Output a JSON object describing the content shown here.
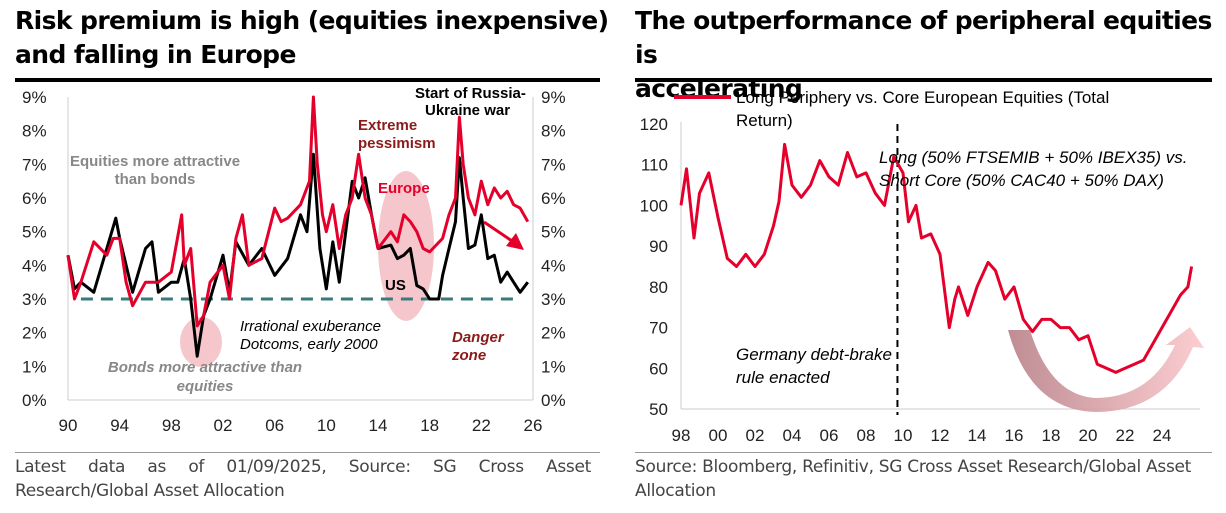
{
  "left": {
    "title_line1": "Risk premium is high (equities inexpensive)",
    "title_line2": "and falling in Europe",
    "footer_line1": "Latest data as of 01/09/2025, Source: SG Cross Asset",
    "footer_line2": "Research/Global Asset Allocation"
  },
  "right": {
    "title_line1": "The outperformance of peripheral equities is",
    "title_line2": "accelerating",
    "footer_line1": "Source: Bloomberg, Refinitiv, SG Cross Asset Research/Global Asset",
    "footer_line2": "Allocation"
  },
  "chart_data": [
    {
      "type": "line",
      "title": "Risk premium is high (equities inexpensive) and falling in Europe",
      "xlim": [
        1990,
        2026
      ],
      "ylim": [
        0,
        9
      ],
      "x_ticks": [
        "90",
        "94",
        "98",
        "02",
        "06",
        "10",
        "14",
        "18",
        "22",
        "26"
      ],
      "y_ticks": [
        "0%",
        "1%",
        "2%",
        "3%",
        "4%",
        "5%",
        "6%",
        "7%",
        "8%",
        "9%"
      ],
      "series": [
        {
          "name": "Europe",
          "color": "#e4002b",
          "x": [
            1990,
            1990.5,
            1991,
            1992,
            1993,
            1993.5,
            1994,
            1994.5,
            1995,
            1996,
            1997,
            1998,
            1998.8,
            1999,
            1999.5,
            2000,
            2000.5,
            2001,
            2002,
            2002.5,
            2003,
            2003.5,
            2004,
            2005,
            2006,
            2006.5,
            2007,
            2008,
            2008.7,
            2009,
            2009.3,
            2009.7,
            2010,
            2010.5,
            2011,
            2011.5,
            2012,
            2012.5,
            2013,
            2013.5,
            2014,
            2015,
            2015.5,
            2016,
            2016.5,
            2017,
            2017.5,
            2018,
            2019,
            2019.5,
            2020,
            2020.3,
            2020.6,
            2021,
            2021.5,
            2022,
            2022.5,
            2023,
            2023.5,
            2024,
            2024.5,
            2025,
            2025.6
          ],
          "y": [
            4.3,
            3.0,
            3.5,
            4.7,
            4.3,
            4.8,
            4.8,
            3.5,
            2.8,
            3.5,
            3.5,
            3.8,
            5.5,
            4.0,
            4.5,
            2.2,
            2.5,
            3.5,
            4.0,
            3.0,
            4.8,
            5.5,
            4.0,
            4.2,
            5.7,
            5.3,
            5.4,
            5.8,
            6.5,
            9.0,
            7.0,
            5.5,
            5.0,
            5.8,
            4.5,
            5.5,
            6.0,
            7.3,
            6.0,
            5.5,
            4.5,
            5.0,
            4.7,
            5.5,
            5.3,
            5.0,
            4.5,
            4.4,
            4.8,
            5.5,
            6.0,
            8.4,
            7.0,
            6.0,
            5.5,
            6.5,
            5.8,
            6.3,
            6.0,
            6.2,
            5.8,
            5.7,
            5.3
          ]
        },
        {
          "name": "US",
          "color": "#000000",
          "x": [
            1990,
            1990.5,
            1991,
            1992,
            1993,
            1993.7,
            1994,
            1995,
            1996,
            1996.5,
            1997,
            1998,
            1998.5,
            1999,
            1999.5,
            2000,
            2000.5,
            2001,
            2002,
            2002.5,
            2003,
            2004,
            2005,
            2006,
            2007,
            2008,
            2008.5,
            2009,
            2009.5,
            2010,
            2010.5,
            2011,
            2012,
            2012.5,
            2013,
            2013.5,
            2014,
            2015,
            2015.5,
            2016,
            2016.5,
            2017,
            2017.5,
            2018,
            2018.7,
            2019,
            2019.5,
            2020,
            2020.3,
            2020.6,
            2021,
            2021.5,
            2022,
            2022.5,
            2023,
            2023.5,
            2024,
            2024.5,
            2025,
            2025.6
          ],
          "y": [
            4.3,
            3.3,
            3.5,
            3.2,
            4.5,
            5.4,
            4.8,
            3.2,
            4.5,
            4.7,
            3.2,
            3.5,
            3.5,
            4.2,
            3.0,
            1.3,
            2.5,
            3.0,
            4.3,
            3.2,
            4.7,
            4.0,
            4.5,
            3.7,
            4.2,
            5.5,
            5.0,
            7.3,
            4.5,
            3.3,
            4.7,
            3.5,
            6.5,
            6.0,
            6.6,
            5.5,
            4.5,
            4.6,
            4.2,
            4.3,
            4.5,
            3.4,
            3.3,
            3.0,
            3.0,
            3.7,
            4.5,
            5.3,
            7.2,
            6.0,
            4.5,
            4.6,
            5.5,
            4.2,
            4.3,
            3.5,
            3.8,
            3.5,
            3.2,
            3.5
          ]
        }
      ],
      "reference_line": {
        "y": 3,
        "x": [
          1991,
          2025
        ],
        "color": "#3a7a7a"
      },
      "annotations": [
        "Start of Russia-",
        "Ukraine war",
        "Extreme",
        "pessimism",
        "Equities more attractive",
        "than bonds",
        "Europe",
        "US",
        "Irrational exuberance",
        "Dotcoms, early 2000",
        "Danger",
        "zone",
        "Bonds more attractive than",
        "equities"
      ]
    },
    {
      "type": "line",
      "title": "The outperformance of peripheral equities is accelerating",
      "xlim": [
        1998,
        2026
      ],
      "ylim": [
        50,
        120
      ],
      "x_ticks": [
        "98",
        "00",
        "02",
        "04",
        "06",
        "08",
        "10",
        "12",
        "14",
        "16",
        "18",
        "20",
        "22",
        "24"
      ],
      "y_ticks": [
        "50",
        "60",
        "70",
        "80",
        "90",
        "100",
        "110",
        "120"
      ],
      "legend": "Long Periphery vs. Core European Equities (Total Return)",
      "legend_line2": "Return)",
      "legend_line1": "Long Periphery vs. Core European Equities (Total",
      "series": [
        {
          "name": "Long Periphery vs. Core European Equities (Total Return)",
          "color": "#e4002b",
          "x": [
            1998,
            1998.3,
            1998.7,
            1999,
            1999.5,
            2000,
            2000.5,
            2001,
            2001.5,
            2002,
            2002.5,
            2003,
            2003.3,
            2003.6,
            2004,
            2004.5,
            2005,
            2005.5,
            2006,
            2006.5,
            2007,
            2007.5,
            2008,
            2008.5,
            2009,
            2009.5,
            2010,
            2010.3,
            2010.7,
            2011,
            2011.5,
            2012,
            2012.5,
            2012.8,
            2013,
            2013.5,
            2014,
            2014.6,
            2015,
            2015.5,
            2016,
            2016.5,
            2017,
            2017.5,
            2018,
            2018.5,
            2019,
            2019.5,
            2020,
            2020.5,
            2021,
            2021.5,
            2022,
            2022.5,
            2023,
            2023.5,
            2024,
            2024.5,
            2025,
            2025.4,
            2025.6
          ],
          "y": [
            100,
            109,
            92,
            103,
            108,
            97,
            87,
            85,
            88,
            85,
            88,
            95,
            101,
            115,
            105,
            102,
            105,
            111,
            107,
            105,
            113,
            107,
            108,
            103,
            100,
            112,
            108,
            96,
            100,
            92,
            93,
            88,
            70,
            77,
            80,
            73,
            80,
            86,
            84,
            77,
            80,
            72,
            69,
            72,
            72,
            70,
            70,
            67,
            68,
            61,
            60,
            59,
            60,
            61,
            62,
            66,
            70,
            74,
            78,
            80,
            85
          ]
        }
      ],
      "vline_x": 2009.7,
      "annotations": [
        "Long (50% FTSEMIB + 50% IBEX35) vs.",
        "Short Core (50% CAC40 + 50% DAX)",
        "Germany debt-brake",
        "rule enacted"
      ]
    }
  ]
}
